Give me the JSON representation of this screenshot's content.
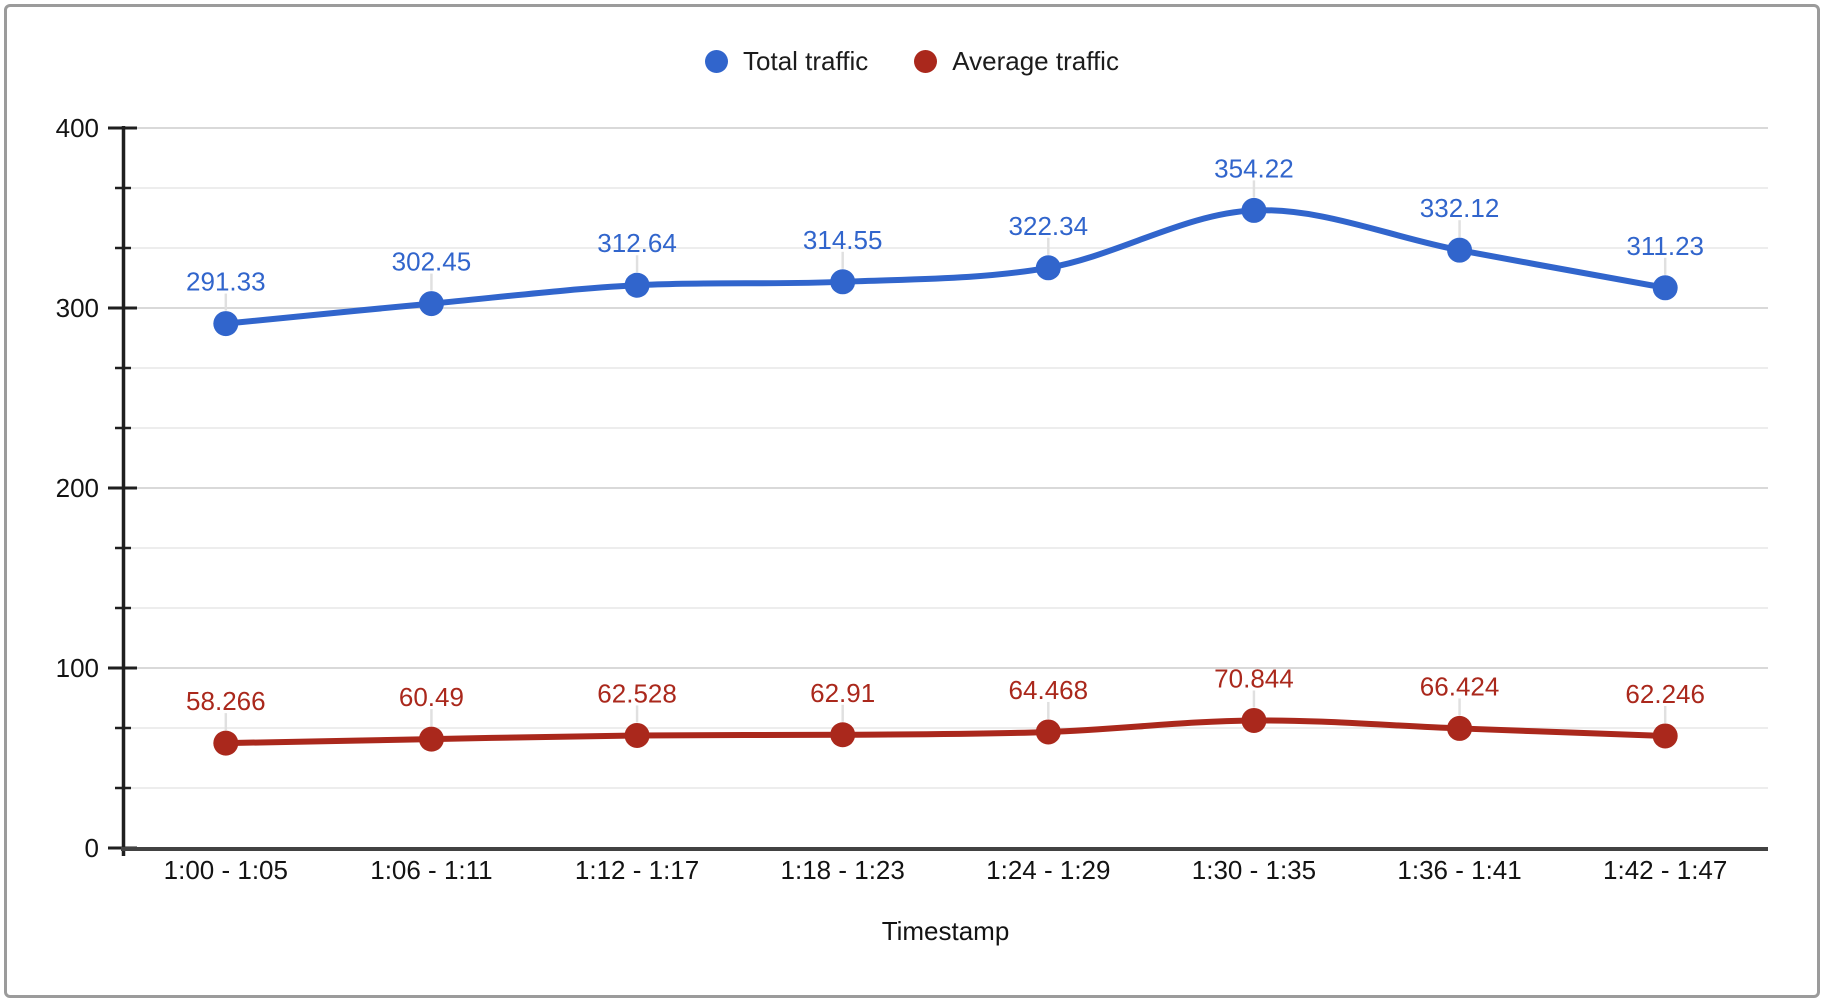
{
  "chart_data": {
    "type": "line",
    "smooth": true,
    "grid": true,
    "legend_position": "top",
    "xlabel": "Timestamp",
    "ylim": [
      0,
      400
    ],
    "y_major_ticks": [
      0,
      100,
      200,
      300,
      400
    ],
    "y_minor_divisions": 3,
    "categories": [
      "1:00 - 1:05",
      "1:06 - 1:11",
      "1:12 - 1:17",
      "1:18 - 1:23",
      "1:24 - 1:29",
      "1:30 - 1:35",
      "1:36 - 1:41",
      "1:42 - 1:47"
    ],
    "series": [
      {
        "name": "Total traffic",
        "color": "#3165cc",
        "values": [
          291.33,
          302.45,
          312.64,
          314.55,
          322.34,
          354.22,
          332.12,
          311.23
        ],
        "labels": [
          "291.33",
          "302.45",
          "312.64",
          "314.55",
          "322.34",
          "354.22",
          "332.12",
          "311.23"
        ]
      },
      {
        "name": "Average traffic",
        "color": "#aa281c",
        "values": [
          58.266,
          60.49,
          62.528,
          62.91,
          64.468,
          70.844,
          66.424,
          62.246
        ],
        "labels": [
          "58.266",
          "60.49",
          "62.528",
          "62.91",
          "64.468",
          "70.844",
          "66.424",
          "62.246"
        ]
      }
    ]
  },
  "colors": {
    "gridline_major": "#d9d9d9",
    "gridline_minor": "#ededed",
    "axis_line": "#1f1f1f",
    "baseline": "#424242",
    "leader_line": "#e0e0e0",
    "tick_text": "#131313",
    "frame_border": "#9b9b9b"
  }
}
